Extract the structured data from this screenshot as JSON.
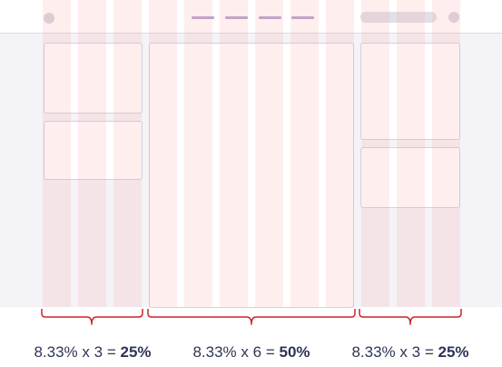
{
  "diagram": {
    "grid": {
      "columns": 12
    },
    "groups": [
      {
        "id": "left",
        "unit": "8.33%",
        "times": "x",
        "span": "3",
        "equals": "=",
        "result": "25%"
      },
      {
        "id": "center",
        "unit": "8.33%",
        "times": "x",
        "span": "6",
        "equals": "=",
        "result": "50%"
      },
      {
        "id": "right",
        "unit": "8.33%",
        "times": "x",
        "span": "3",
        "equals": "=",
        "result": "25%"
      }
    ],
    "colors": {
      "column_tint": "#ffe6e6",
      "brace": "#d0202a",
      "caption_text": "#2e3557",
      "nav_dash": "#b9a6d2"
    }
  }
}
